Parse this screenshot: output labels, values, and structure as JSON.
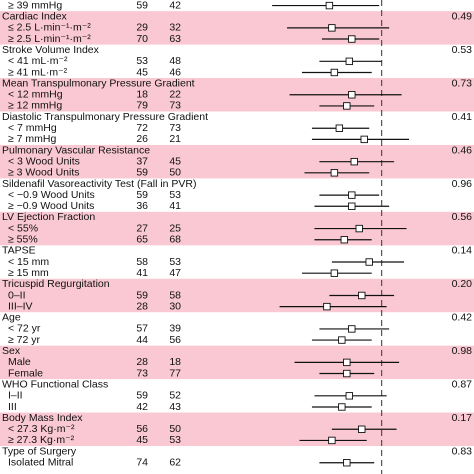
{
  "chart_data": {
    "type": "forest",
    "title": "",
    "xlabel": "",
    "ylabel": "",
    "xlim": [
      0.0,
      1.0
    ],
    "reference_line": 0.83,
    "reference_line_style": "dashed",
    "shading_color": "#f9c8d2",
    "groups": [
      {
        "header": null,
        "p": null,
        "shaded": false,
        "rows": [
          {
            "label": "≥ 39 mmHg",
            "n1": "59",
            "n2": "42",
            "est": 0.62,
            "lo": 0.39,
            "hi": 0.82
          }
        ]
      },
      {
        "header": "Cardiac Index",
        "p": "0.49",
        "shaded": true,
        "rows": [
          {
            "label": "≤ 2.5 L·min⁻¹·m⁻²",
            "n1": "29",
            "n2": "32",
            "est": 0.63,
            "lo": 0.45,
            "hi": 0.86
          },
          {
            "label": "≥ 2.5 L·min⁻¹·m⁻²",
            "n1": "70",
            "n2": "63",
            "est": 0.71,
            "lo": 0.59,
            "hi": 0.82
          }
        ]
      },
      {
        "header": "Stroke Volume Index",
        "p": "0.53",
        "shaded": false,
        "rows": [
          {
            "label": "< 41 mL·m⁻²",
            "n1": "53",
            "n2": "48",
            "est": 0.7,
            "lo": 0.58,
            "hi": 0.83
          },
          {
            "label": "≥ 41 mL·m⁻²",
            "n1": "45",
            "n2": "46",
            "est": 0.64,
            "lo": 0.51,
            "hi": 0.79
          }
        ]
      },
      {
        "header": "Mean Transpulmonary Pressure Gradient",
        "p": "0.73",
        "shaded": true,
        "rows": [
          {
            "label": "< 12 mmHg",
            "n1": "18",
            "n2": "22",
            "est": 0.71,
            "lo": 0.46,
            "hi": 0.91
          },
          {
            "label": "≥ 12 mmHg",
            "n1": "79",
            "n2": "73",
            "est": 0.69,
            "lo": 0.58,
            "hi": 0.8
          }
        ]
      },
      {
        "header": "Diastolic Transpulmonary Pressure Gradient",
        "p": "0.41",
        "shaded": false,
        "rows": [
          {
            "label": "< 7 mmHg",
            "n1": "72",
            "n2": "73",
            "est": 0.66,
            "lo": 0.55,
            "hi": 0.78
          },
          {
            "label": "≥ 7 mmHg",
            "n1": "26",
            "n2": "21",
            "est": 0.76,
            "lo": 0.55,
            "hi": 0.94
          }
        ]
      },
      {
        "header": "Pulmonary Vascular Resistance",
        "p": "0.46",
        "shaded": true,
        "rows": [
          {
            "label": "< 3 Wood Units",
            "n1": "37",
            "n2": "45",
            "est": 0.72,
            "lo": 0.58,
            "hi": 0.88
          },
          {
            "label": "≥ 3 Wood Units",
            "n1": "59",
            "n2": "50",
            "est": 0.64,
            "lo": 0.52,
            "hi": 0.78
          }
        ]
      },
      {
        "header": "Sildenafil Vasoreactivity Test (Fall in PVR)",
        "p": "0.96",
        "shaded": false,
        "rows": [
          {
            "label": "< −0.9 Wood Units",
            "n1": "59",
            "n2": "53",
            "est": 0.71,
            "lo": 0.58,
            "hi": 0.82
          },
          {
            "label": "≥ −0.9 Wood Units",
            "n1": "36",
            "n2": "41",
            "est": 0.71,
            "lo": 0.56,
            "hi": 0.86
          }
        ]
      },
      {
        "header": "LV Ejection Fraction",
        "p": "0.56",
        "shaded": true,
        "rows": [
          {
            "label": "< 55%",
            "n1": "27",
            "n2": "25",
            "est": 0.74,
            "lo": 0.56,
            "hi": 0.93
          },
          {
            "label": "≥ 55%",
            "n1": "65",
            "n2": "68",
            "est": 0.68,
            "lo": 0.56,
            "hi": 0.79
          }
        ]
      },
      {
        "header": "TAPSE",
        "p": "0.14",
        "shaded": false,
        "rows": [
          {
            "label": "< 15 mm",
            "n1": "58",
            "n2": "53",
            "est": 0.78,
            "lo": 0.63,
            "hi": 0.92
          },
          {
            "label": "≥ 15 mm",
            "n1": "41",
            "n2": "47",
            "est": 0.64,
            "lo": 0.51,
            "hi": 0.79
          }
        ]
      },
      {
        "header": "Tricuspid Regurgitation",
        "p": "0.20",
        "shaded": true,
        "rows": [
          {
            "label": "0–II",
            "n1": "59",
            "n2": "58",
            "est": 0.75,
            "lo": 0.62,
            "hi": 0.88
          },
          {
            "label": "III–IV",
            "n1": "28",
            "n2": "30",
            "est": 0.61,
            "lo": 0.42,
            "hi": 0.85
          }
        ]
      },
      {
        "header": "Age",
        "p": "0.42",
        "shaded": false,
        "rows": [
          {
            "label": "< 72 yr",
            "n1": "57",
            "n2": "39",
            "est": 0.71,
            "lo": 0.58,
            "hi": 0.86
          },
          {
            "label": "≥ 72 yr",
            "n1": "44",
            "n2": "56",
            "est": 0.67,
            "lo": 0.55,
            "hi": 0.79
          }
        ]
      },
      {
        "header": "Sex",
        "p": "0.98",
        "shaded": true,
        "rows": [
          {
            "label": "Male",
            "n1": "28",
            "n2": "18",
            "est": 0.69,
            "lo": 0.48,
            "hi": 0.9
          },
          {
            "label": "Female",
            "n1": "73",
            "n2": "77",
            "est": 0.69,
            "lo": 0.58,
            "hi": 0.8
          }
        ]
      },
      {
        "header": "WHO Functional Class",
        "p": "0.87",
        "shaded": false,
        "rows": [
          {
            "label": "I–II",
            "n1": "59",
            "n2": "52",
            "est": 0.7,
            "lo": 0.56,
            "hi": 0.85
          },
          {
            "label": "III",
            "n1": "42",
            "n2": "43",
            "est": 0.67,
            "lo": 0.55,
            "hi": 0.79
          }
        ]
      },
      {
        "header": "Body Mass Index",
        "p": "0.17",
        "shaded": true,
        "rows": [
          {
            "label": "< 27.3 Kg·m⁻²",
            "n1": "56",
            "n2": "50",
            "est": 0.75,
            "lo": 0.63,
            "hi": 0.89
          },
          {
            "label": "≥ 27.3 Kg·m⁻²",
            "n1": "45",
            "n2": "53",
            "est": 0.63,
            "lo": 0.5,
            "hi": 0.77
          }
        ]
      },
      {
        "header": "Type of Surgery",
        "p": "0.83",
        "shaded": false,
        "rows": [
          {
            "label": "Isolated Mitral",
            "n1": "74",
            "n2": "62",
            "est": 0.69,
            "lo": 0.58,
            "hi": 0.8
          }
        ]
      }
    ]
  }
}
